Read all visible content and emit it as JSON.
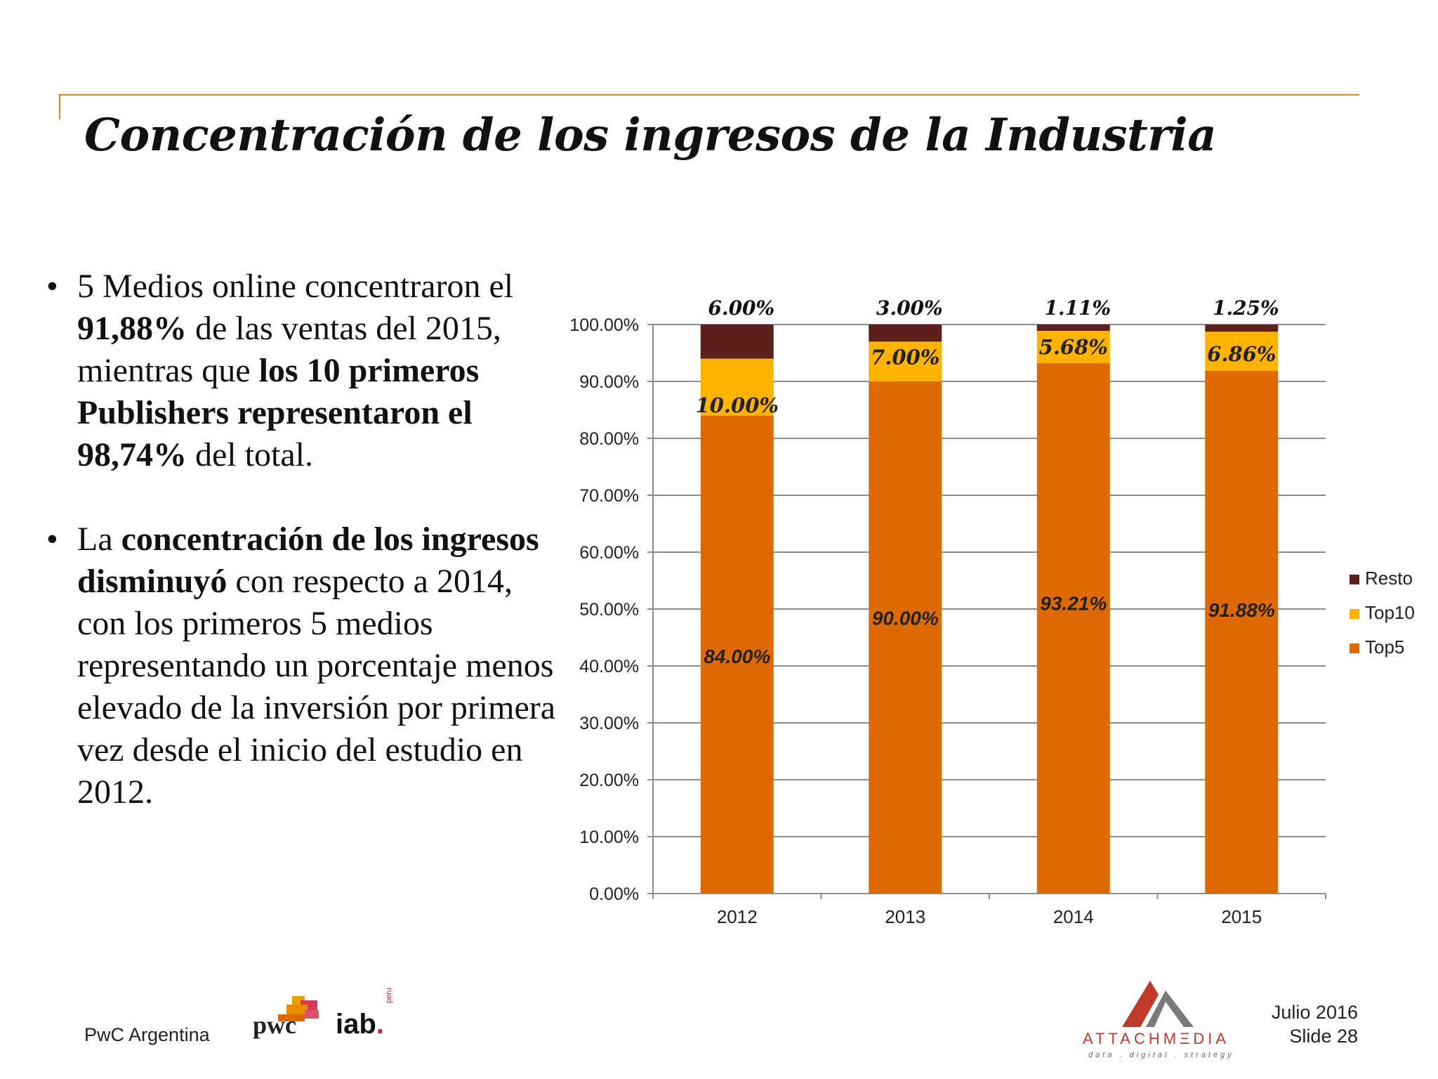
{
  "slide": {
    "title": "Concentración de los ingresos de la Industria",
    "bullets": [
      [
        {
          "text": "5 Medios online concentraron el ",
          "bold": false
        },
        {
          "text": "91,88%",
          "bold": true
        },
        {
          "text": " de las ventas del 2015, mientras que ",
          "bold": false
        },
        {
          "text": "los 10 primeros Publishers representaron el 98,74%",
          "bold": true
        },
        {
          "text": " del total.",
          "bold": false
        }
      ],
      [
        {
          "text": "La ",
          "bold": false
        },
        {
          "text": "concentración de los ingresos disminuyó",
          "bold": true
        },
        {
          "text": " con respecto a 2014, con los primeros 5 medios representando un porcentaje menos elevado de la inversión por primera vez desde el inicio del estudio en 2012.",
          "bold": false
        }
      ]
    ]
  },
  "footer": {
    "company": "PwC Argentina",
    "pwc_logo_text": "pwc",
    "iab_logo_text": "iab",
    "iab_logo_dot": ".",
    "iab_logo_sub": "peru",
    "attach_logo_text": "ATTACHMΞDIA",
    "attach_logo_tagline": "data . digital . strategy",
    "date": "Julio 2016",
    "slide_number": "Slide 28"
  },
  "chart_data": {
    "type": "bar",
    "stacked": true,
    "categories": [
      "2012",
      "2013",
      "2014",
      "2015"
    ],
    "series": [
      {
        "name": "Top5",
        "values": [
          84.0,
          90.0,
          93.21,
          91.88
        ],
        "labels": [
          "84.00%",
          "90.00%",
          "93.21%",
          "91.88%"
        ],
        "color": "#dd6a05"
      },
      {
        "name": "Top10",
        "values": [
          10.0,
          7.0,
          5.68,
          6.86
        ],
        "labels": [
          "10.00%",
          "7.00%",
          "5.68%",
          "6.86%"
        ],
        "color": "#ffb300"
      },
      {
        "name": "Resto",
        "values": [
          6.0,
          3.0,
          1.11,
          1.25
        ],
        "labels": [
          "6.00%",
          "3.00%",
          "1.11%",
          "1.25%"
        ],
        "color": "#5c211c"
      }
    ],
    "ylim": [
      0,
      100
    ],
    "yticks": [
      "0.00%",
      "10.00%",
      "20.00%",
      "30.00%",
      "40.00%",
      "50.00%",
      "60.00%",
      "70.00%",
      "80.00%",
      "90.00%",
      "100.00%"
    ],
    "grid": true,
    "legend": "right",
    "legend_order": [
      "Resto",
      "Top10",
      "Top5"
    ]
  }
}
